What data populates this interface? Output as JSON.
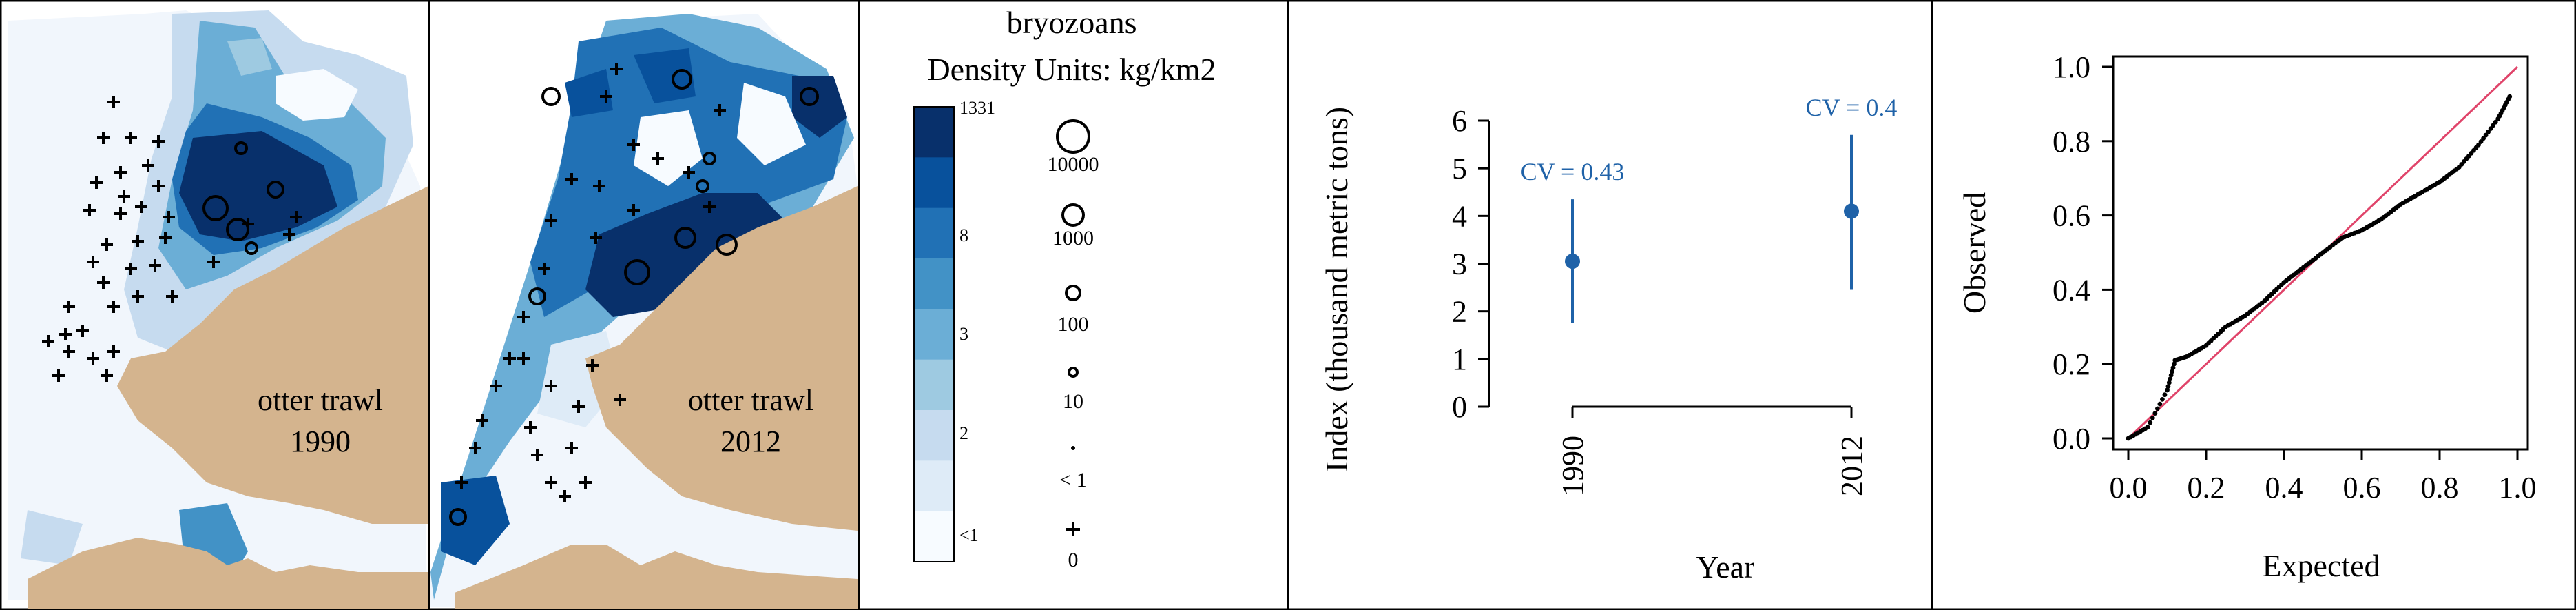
{
  "maps": [
    {
      "label_line1": "otter trawl",
      "label_line2": "1990"
    },
    {
      "label_line1": "otter trawl",
      "label_line2": "2012"
    }
  ],
  "legend": {
    "title": "bryozoans",
    "subtitle": "Density Units: kg/km2",
    "color_labels": [
      "1331",
      "8",
      "3",
      "2",
      "<1"
    ],
    "colors": [
      "#08306b",
      "#08519c",
      "#2171b5",
      "#4292c6",
      "#6baed6",
      "#9ecae1",
      "#c6dbef",
      "#deebf7",
      "#f7fbff"
    ],
    "bubble_labels": [
      "10000",
      "1000",
      "100",
      "10",
      "< 1",
      "0"
    ]
  },
  "chart_data": [
    {
      "type": "scatter",
      "title": "",
      "xlabel": "Year",
      "ylabel": "Index (thousand metric tons)",
      "categories": [
        "1990",
        "2012"
      ],
      "ylim": [
        0,
        6
      ],
      "yticks": [
        "0",
        "1",
        "2",
        "3",
        "4",
        "5",
        "6"
      ],
      "series": [
        {
          "values": [
            3.05,
            4.1
          ],
          "lower": [
            1.75,
            2.45
          ],
          "upper": [
            4.35,
            5.7
          ]
        }
      ],
      "annotations": [
        "CV = 0.43",
        "CV = 0.4"
      ],
      "color": "#1f62a8"
    },
    {
      "type": "scatter",
      "title": "",
      "xlabel": "Expected",
      "ylabel": "Observed",
      "xlim": [
        0,
        1
      ],
      "ylim": [
        0,
        1
      ],
      "xticks": [
        "0.0",
        "0.2",
        "0.4",
        "0.6",
        "0.8",
        "1.0"
      ],
      "yticks": [
        "0.0",
        "0.2",
        "0.4",
        "0.6",
        "0.8",
        "1.0"
      ],
      "reference_line": [
        [
          0,
          0
        ],
        [
          1,
          1
        ]
      ],
      "qq_points": [
        [
          0.0,
          0.0
        ],
        [
          0.05,
          0.03
        ],
        [
          0.1,
          0.13
        ],
        [
          0.12,
          0.21
        ],
        [
          0.15,
          0.22
        ],
        [
          0.2,
          0.25
        ],
        [
          0.25,
          0.3
        ],
        [
          0.3,
          0.33
        ],
        [
          0.35,
          0.37
        ],
        [
          0.4,
          0.42
        ],
        [
          0.45,
          0.46
        ],
        [
          0.5,
          0.5
        ],
        [
          0.55,
          0.54
        ],
        [
          0.6,
          0.56
        ],
        [
          0.65,
          0.59
        ],
        [
          0.7,
          0.63
        ],
        [
          0.75,
          0.66
        ],
        [
          0.8,
          0.69
        ],
        [
          0.85,
          0.73
        ],
        [
          0.9,
          0.79
        ],
        [
          0.95,
          0.86
        ],
        [
          0.98,
          0.92
        ]
      ],
      "line_color": "#e0446a"
    }
  ]
}
